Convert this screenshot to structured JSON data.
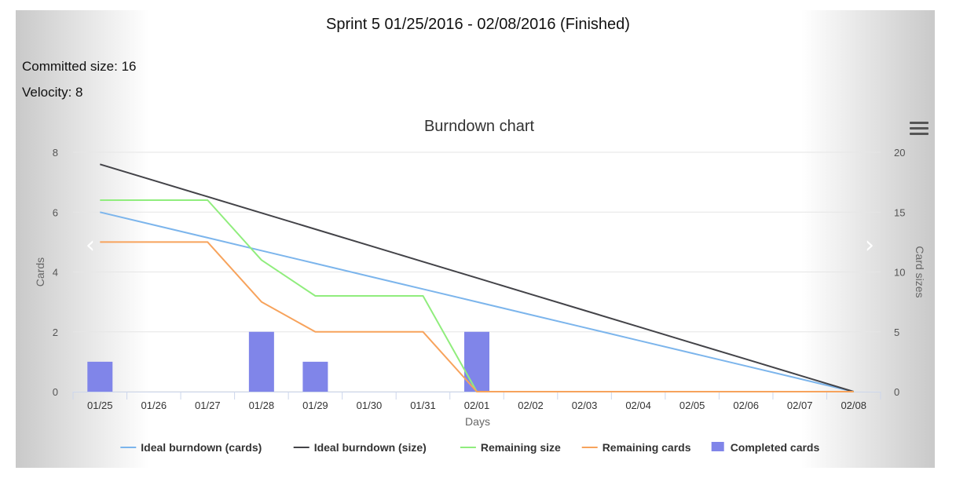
{
  "header": {
    "sprint_title": "Sprint 5 01/25/2016 - 02/08/2016 (Finished)",
    "committed": "Committed size: 16",
    "velocity": "Velocity: 8"
  },
  "icons": {
    "prev": "chevron-left-icon",
    "next": "chevron-right-icon",
    "menu": "hamburger-menu-icon"
  },
  "chart_data": {
    "type": "line",
    "title": "Burndown chart",
    "xlabel": "Days",
    "ylabel": "Cards",
    "y2label": "Card sizes",
    "categories": [
      "01/25",
      "01/26",
      "01/27",
      "01/28",
      "01/29",
      "01/30",
      "01/31",
      "02/01",
      "02/02",
      "02/03",
      "02/04",
      "02/05",
      "02/06",
      "02/07",
      "02/08"
    ],
    "ylim": [
      0,
      8
    ],
    "y2lim": [
      0,
      20
    ],
    "yticks": [
      "0",
      "2",
      "4",
      "6",
      "8"
    ],
    "y2ticks": [
      "0",
      "5",
      "10",
      "15",
      "20"
    ],
    "grid": true,
    "legend_position": "bottom",
    "series": [
      {
        "name": "Ideal burndown (cards)",
        "type": "line",
        "axis": "left",
        "color": "#7cb5ec",
        "values": [
          6,
          5.571,
          5.143,
          4.714,
          4.286,
          3.857,
          3.429,
          3,
          2.571,
          2.143,
          1.714,
          1.286,
          0.857,
          0.429,
          0
        ]
      },
      {
        "name": "Ideal burndown (size)",
        "type": "line",
        "axis": "right",
        "color": "#434348",
        "values": [
          19,
          17.643,
          16.286,
          14.929,
          13.571,
          12.214,
          10.857,
          9.5,
          8.143,
          6.786,
          5.429,
          4.071,
          2.714,
          1.357,
          0
        ]
      },
      {
        "name": "Remaining size",
        "type": "line",
        "axis": "right",
        "color": "#90ed7d",
        "values": [
          16,
          16,
          16,
          11,
          8,
          8,
          8,
          0,
          0,
          0,
          0,
          0,
          0,
          0,
          0
        ]
      },
      {
        "name": "Remaining cards",
        "type": "line",
        "axis": "left",
        "color": "#f7a35c",
        "values": [
          5,
          5,
          5,
          3,
          2,
          2,
          2,
          0,
          0,
          0,
          0,
          0,
          0,
          0,
          0
        ]
      },
      {
        "name": "Completed cards",
        "type": "column",
        "axis": "left",
        "color": "#8085e9",
        "values": [
          1,
          0,
          0,
          2,
          1,
          0,
          0,
          2,
          0,
          0,
          0,
          0,
          0,
          0,
          0
        ]
      }
    ]
  }
}
